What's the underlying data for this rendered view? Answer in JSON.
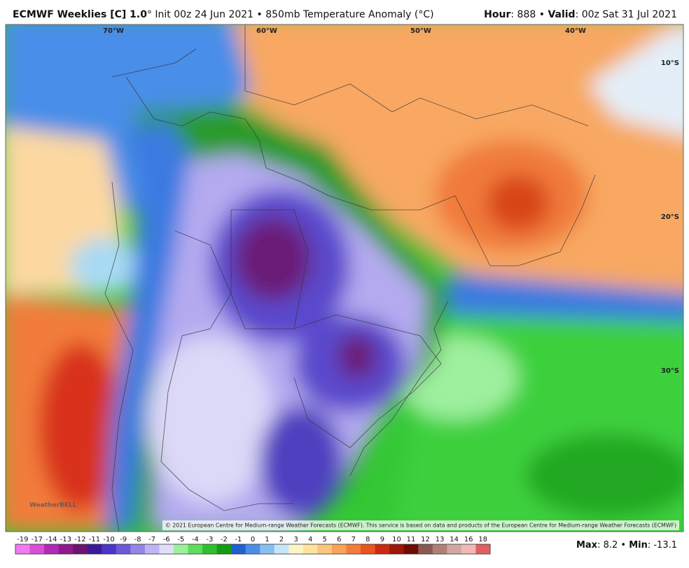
{
  "header": {
    "title_bold": "ECMWF Weeklies [C] 1.0",
    "title_rest": "° Init 00z 24 Jun 2021 • 850mb Temperature Anomaly (°C)",
    "hour_label": "Hour",
    "hour_value": ": 888 • ",
    "valid_label": "Valid",
    "valid_value": ": 00z Sat 31 Jul 2021"
  },
  "map": {
    "lon_labels": [
      "70°W",
      "60°W",
      "50°W",
      "40°W"
    ],
    "lat_labels": [
      "10°S",
      "20°S",
      "30°S"
    ],
    "credit": "© 2021 European Centre for Medium-range Weather Forecasts (ECMWF). This service is based on data and products of the European Centre for Medium-range Weather Forecasts (ECMWF)",
    "logo": "WeatherBELL"
  },
  "legend": {
    "labels": [
      "-19",
      "-17",
      "-14",
      "-13",
      "-12",
      "-11",
      "-10",
      "-9",
      "-8",
      "-7",
      "-6",
      "-5",
      "-4",
      "-3",
      "-2",
      "-1",
      "0",
      "1",
      "2",
      "3",
      "4",
      "5",
      "6",
      "7",
      "8",
      "9",
      "10",
      "11",
      "12",
      "13",
      "14",
      "16",
      "18"
    ],
    "colors": [
      "#f07af0",
      "#d84fd8",
      "#b02ab8",
      "#8e1a8e",
      "#6b1470",
      "#3a1a9a",
      "#4a35c8",
      "#6a5ad8",
      "#9285e6",
      "#bdb4f2",
      "#e2defa",
      "#9bf09b",
      "#5ddc5d",
      "#2fc02f",
      "#159a15",
      "#2060d0",
      "#4a8ee8",
      "#86c0f0",
      "#c6e6f8",
      "#fbf5c8",
      "#fde2a0",
      "#fcc47c",
      "#f8a25a",
      "#f27d3a",
      "#e95420",
      "#cc2a10",
      "#a01608",
      "#6e0c04",
      "#8a5a50",
      "#b08078",
      "#d0a8a0",
      "#f0b8b8",
      "#e06060"
    ],
    "stats": {
      "max_label": "Max",
      "max_value": ": 8.2 • ",
      "min_label": "Min",
      "min_value": ": -13.1"
    }
  }
}
